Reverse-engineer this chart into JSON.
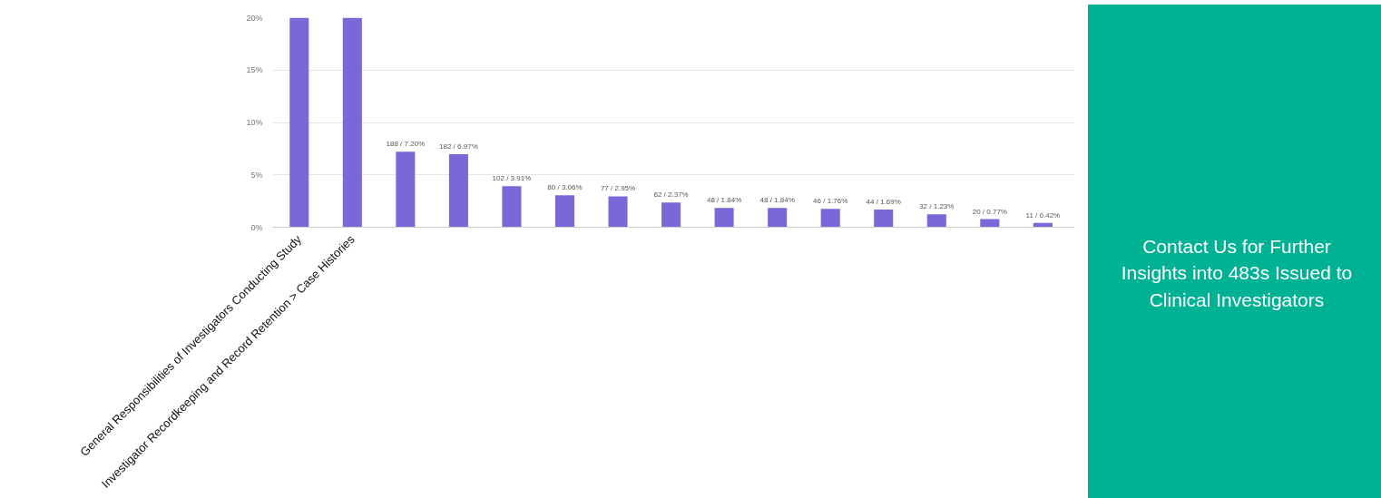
{
  "chart_data": {
    "type": "bar",
    "categories": [
      "General Responsibilities of Investigators Conducting Study",
      "Investigator Recordkeeping and Record Retention > Case Histories",
      null,
      null,
      null,
      null,
      null,
      null,
      null,
      null,
      null,
      null,
      null,
      null,
      null
    ],
    "values": [
      20,
      20,
      7.2,
      6.97,
      3.91,
      3.06,
      2.95,
      2.37,
      1.84,
      1.84,
      1.76,
      1.69,
      1.23,
      0.77,
      0.42
    ],
    "value_labels": [
      null,
      null,
      "188 / 7.20%",
      "182 / 6.97%",
      "102 / 3.91%",
      "80 / 3.06%",
      "77 / 2.95%",
      "62 / 2.37%",
      "48 / 1.84%",
      "48 / 1.84%",
      "46 / 1.76%",
      "44 / 1.69%",
      "32 / 1.23%",
      "20 / 0.77%",
      "11 / 0.42%"
    ],
    "color": "#7b68d8",
    "ylim": [
      0,
      20
    ],
    "yticks": [
      {
        "value": 0,
        "label": "0%"
      },
      {
        "value": 5,
        "label": "5%"
      },
      {
        "value": 10,
        "label": "10%"
      },
      {
        "value": 15,
        "label": "15%"
      },
      {
        "value": 20,
        "label": "20%"
      }
    ],
    "grid": "y",
    "annotations": [
      "Contact Us for Further Insights into 483s Issued to Clinical Investigators"
    ]
  }
}
